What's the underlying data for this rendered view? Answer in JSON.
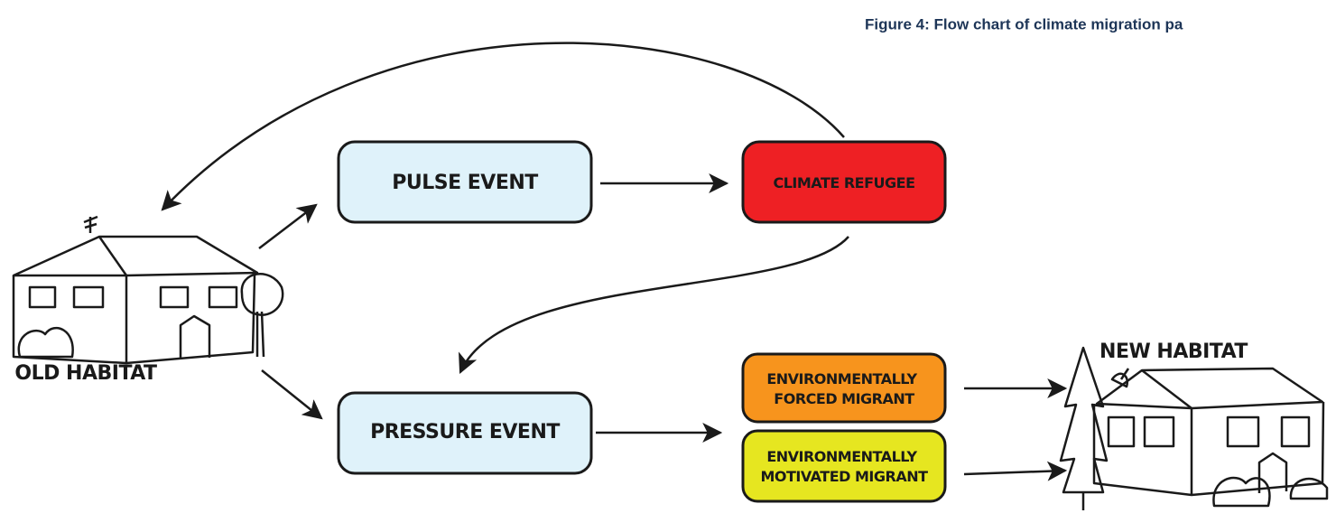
{
  "title": "Figure 4: Flow chart of climate migration pa",
  "nodes": [
    {
      "lines": [
        "OLD HABITAT"
      ]
    },
    {
      "lines": [
        "PULSE EVENT"
      ]
    },
    {
      "lines": [
        "CLIMATE REFUGEE"
      ]
    },
    {
      "lines": [
        "PRESSURE EVENT"
      ]
    },
    {
      "lines": [
        "ENVIRONMENTALLY",
        "FORCED MIGRANT"
      ]
    },
    {
      "lines": [
        "ENVIRONMENTALLY",
        "MOTIVATED MIGRANT"
      ]
    },
    {
      "lines": [
        "NEW HABITAT"
      ]
    }
  ]
}
